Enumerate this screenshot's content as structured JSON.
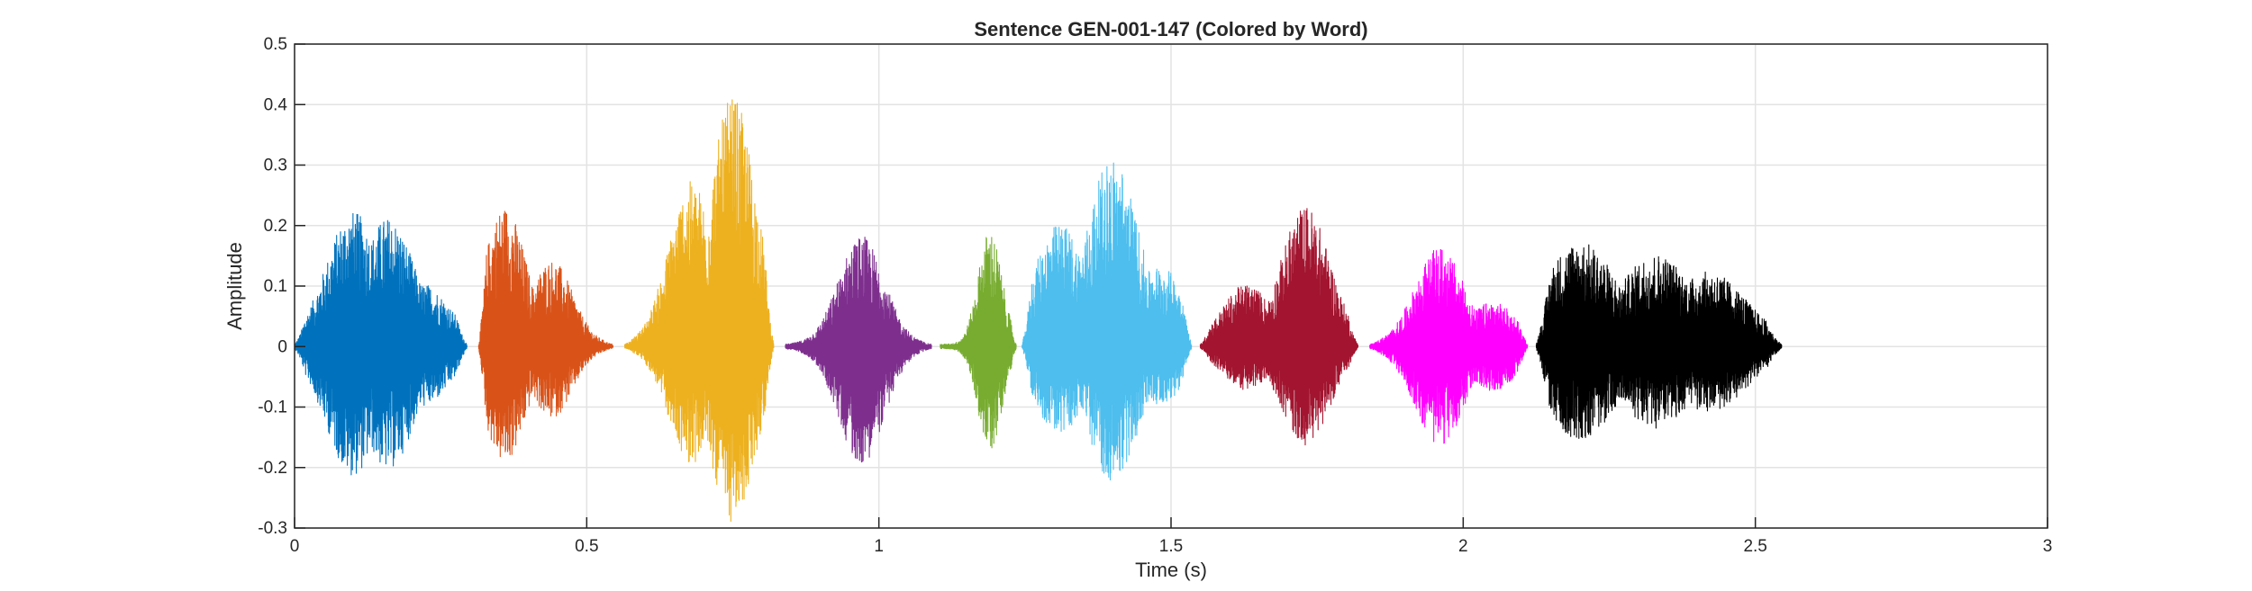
{
  "chart_data": {
    "type": "line",
    "title": "Sentence GEN-001-147 (Colored by Word)",
    "xlabel": "Time (s)",
    "ylabel": "Amplitude",
    "xlim": [
      0,
      3
    ],
    "ylim": [
      -0.3,
      0.5
    ],
    "xticks": [
      0,
      0.5,
      1,
      1.5,
      2,
      2.5,
      3
    ],
    "xtick_labels": [
      "0",
      "0.5",
      "1",
      "1.5",
      "2",
      "2.5",
      "3"
    ],
    "yticks": [
      -0.3,
      -0.2,
      -0.1,
      0,
      0.1,
      0.2,
      0.3,
      0.4,
      0.5
    ],
    "ytick_labels": [
      "-0.3",
      "-0.2",
      "-0.1",
      "0",
      "0.1",
      "0.2",
      "0.3",
      "0.4",
      "0.5"
    ],
    "grid": true,
    "series": [
      {
        "color": "#0072BD",
        "start": 0.0,
        "end": 0.295,
        "peaks": [
          [
            0.1,
            0.22
          ],
          [
            0.16,
            0.21
          ],
          [
            0.22,
            0.1
          ]
        ],
        "min": -0.21
      },
      {
        "color": "#D95319",
        "start": 0.315,
        "end": 0.545,
        "peaks": [
          [
            0.36,
            0.23
          ],
          [
            0.44,
            0.14
          ]
        ],
        "min": -0.19
      },
      {
        "color": "#EDB120",
        "start": 0.565,
        "end": 0.82,
        "peaks": [
          [
            0.68,
            0.27
          ],
          [
            0.75,
            0.41
          ]
        ],
        "min": -0.29
      },
      {
        "color": "#7E2F8E",
        "start": 0.84,
        "end": 1.09,
        "peaks": [
          [
            0.97,
            0.18
          ]
        ],
        "min": -0.19
      },
      {
        "color": "#77AC30",
        "start": 1.105,
        "end": 1.235,
        "peaks": [
          [
            1.19,
            0.19
          ]
        ],
        "min": -0.17
      },
      {
        "color": "#4DBEEE",
        "start": 1.245,
        "end": 1.535,
        "peaks": [
          [
            1.31,
            0.2
          ],
          [
            1.4,
            0.31
          ],
          [
            1.48,
            0.13
          ]
        ],
        "min": -0.22
      },
      {
        "color": "#A2142F",
        "start": 1.55,
        "end": 1.82,
        "peaks": [
          [
            1.63,
            0.1
          ],
          [
            1.73,
            0.23
          ]
        ],
        "min": -0.16
      },
      {
        "color": "#FF00FF",
        "start": 1.84,
        "end": 2.11,
        "peaks": [
          [
            1.96,
            0.16
          ],
          [
            2.05,
            0.07
          ]
        ],
        "min": -0.16
      },
      {
        "color": "#000000",
        "start": 2.125,
        "end": 2.545,
        "peaks": [
          [
            2.2,
            0.17
          ],
          [
            2.33,
            0.15
          ],
          [
            2.42,
            0.12
          ]
        ],
        "min": -0.15
      }
    ]
  }
}
